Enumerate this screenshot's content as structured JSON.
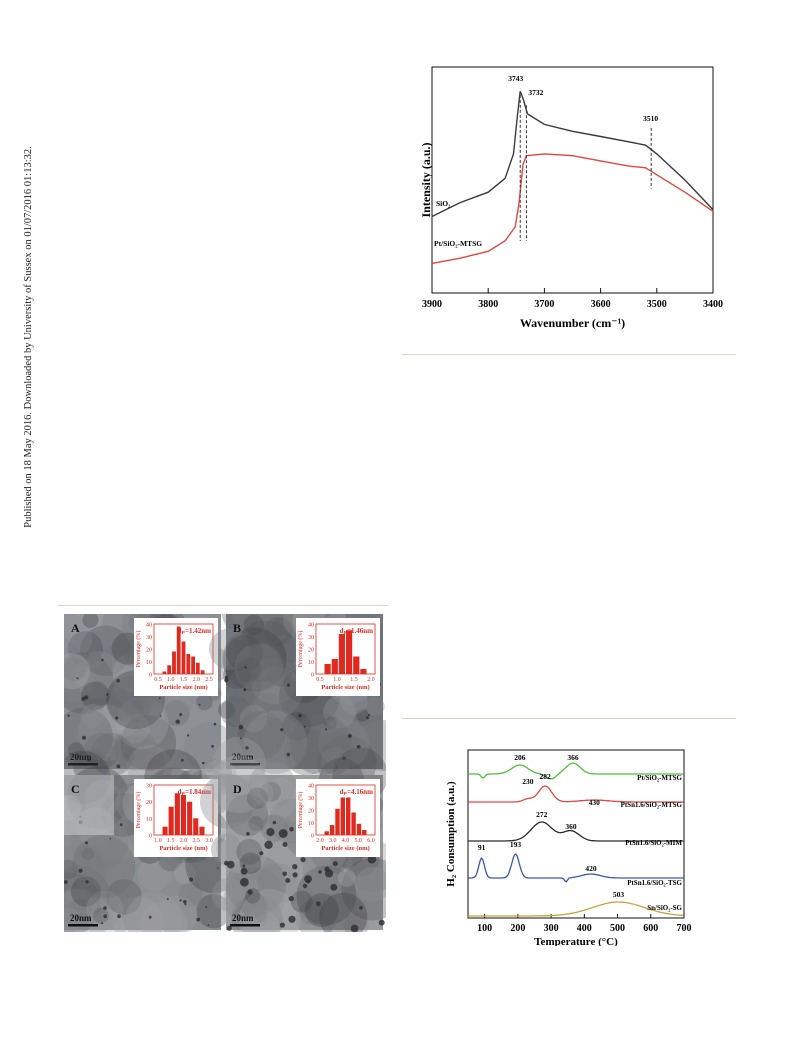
{
  "sidebar_note": "Published on 18 May 2016. Downloaded by University of Sussex on 01/07/2016 01:13:32.",
  "ir_chart": {
    "chart_data": {
      "type": "line",
      "xlabel": "Wavenumber (cm⁻¹)",
      "ylabel": "Intensity (a.u.)",
      "xlim": [
        3900,
        3400
      ],
      "x_ticks": [
        "3900",
        "3800",
        "3700",
        "3600",
        "3500",
        "3400"
      ],
      "series": [
        {
          "name": "SiO₂",
          "color": "#3a3a3a",
          "points": [
            [
              3900,
              0.44
            ],
            [
              3850,
              0.52
            ],
            [
              3800,
              0.58
            ],
            [
              3770,
              0.66
            ],
            [
              3755,
              0.8
            ],
            [
              3748,
              1.02
            ],
            [
              3743,
              1.16
            ],
            [
              3738,
              1.12
            ],
            [
              3730,
              1.03
            ],
            [
              3700,
              0.97
            ],
            [
              3650,
              0.93
            ],
            [
              3600,
              0.9
            ],
            [
              3550,
              0.87
            ],
            [
              3520,
              0.85
            ],
            [
              3500,
              0.8
            ],
            [
              3450,
              0.65
            ],
            [
              3400,
              0.48
            ]
          ]
        },
        {
          "name": "Pt/SiO₂-MTSG",
          "color": "#e3463f",
          "points": [
            [
              3900,
              0.17
            ],
            [
              3850,
              0.2
            ],
            [
              3800,
              0.24
            ],
            [
              3770,
              0.3
            ],
            [
              3752,
              0.38
            ],
            [
              3745,
              0.52
            ],
            [
              3738,
              0.74
            ],
            [
              3732,
              0.79
            ],
            [
              3700,
              0.8
            ],
            [
              3650,
              0.79
            ],
            [
              3600,
              0.76
            ],
            [
              3550,
              0.73
            ],
            [
              3520,
              0.72
            ],
            [
              3500,
              0.68
            ],
            [
              3450,
              0.58
            ],
            [
              3400,
              0.47
            ]
          ]
        }
      ],
      "annotations": [
        {
          "label": "3743",
          "x": 3743
        },
        {
          "label": "3732",
          "x": 3732
        },
        {
          "label": "3510",
          "x": 3510
        }
      ]
    }
  },
  "tem_figure": {
    "panels": [
      {
        "letter": "A",
        "d_label": "dₚ=1.42nm",
        "scale": "20nm",
        "y_max": "40",
        "y_ticks": [
          "40",
          "30",
          "20",
          "10",
          "0"
        ],
        "x_ticks": [
          "0.5",
          "1.0",
          "1.5",
          "2.0",
          "2.5"
        ],
        "bars": [
          2,
          7,
          18,
          38,
          26,
          16,
          14,
          9,
          3
        ],
        "ymax_value": 40
      },
      {
        "letter": "B",
        "d_label": "dₚ=1.46nm",
        "scale": "20nm",
        "y_max": "40",
        "y_ticks": [
          "40",
          "30",
          "20",
          "10",
          "0"
        ],
        "x_ticks": [
          "0.5",
          "1.0",
          "1.5",
          "2.0"
        ],
        "bars": [
          8,
          12,
          32,
          35,
          14,
          4
        ],
        "ymax_value": 40
      },
      {
        "letter": "C",
        "d_label": "dₚ=1.84nm",
        "scale": "20nm",
        "y_max": "30",
        "y_ticks": [
          "30",
          "20",
          "10",
          "0"
        ],
        "x_ticks": [
          "1.0",
          "1.5",
          "2.0",
          "2.5",
          "3.0"
        ],
        "bars": [
          5,
          17,
          25,
          24,
          20,
          10,
          5
        ],
        "ymax_value": 30
      },
      {
        "letter": "D",
        "d_label": "dₚ=4.16nm",
        "scale": "20nm",
        "y_max": "40",
        "y_ticks": [
          "40",
          "30",
          "20",
          "10",
          "0"
        ],
        "x_ticks": [
          "2.0",
          "3.0",
          "4.0",
          "5.0",
          "6.0"
        ],
        "bars": [
          3,
          8,
          21,
          30,
          30,
          18,
          9,
          4
        ],
        "ymax_value": 40
      }
    ],
    "ylabel": "Percentage (%)",
    "xlabel": "Particle size (nm)"
  },
  "tpr_chart": {
    "chart_data": {
      "type": "line",
      "xlabel": "Temperature (°C)",
      "ylabel": "H₂ Consumption (a.u.)",
      "xlim": [
        50,
        700
      ],
      "x_ticks": [
        "100",
        "200",
        "300",
        "400",
        "500",
        "600",
        "700"
      ],
      "series": [
        {
          "name": "Pt/SiO₂-MTSG",
          "color": "#4cbf3a",
          "peaks": [
            "206",
            "366"
          ]
        },
        {
          "name": "PtSn1.6/SiO₂-MTSG",
          "color": "#e3463f",
          "peaks": [
            "230",
            "282",
            "430"
          ]
        },
        {
          "name": "PtSn1.6/SiO₂-MIM",
          "color": "#2a2a2a",
          "peaks": [
            "272",
            "360"
          ]
        },
        {
          "name": "PtSn1.6/SiO₂-TSG",
          "color": "#3a55b5",
          "peaks": [
            "91",
            "193",
            "420"
          ]
        },
        {
          "name": "Sn/SiO₂-SG",
          "color": "#c9a23a",
          "peaks": [
            "503"
          ]
        }
      ]
    }
  }
}
